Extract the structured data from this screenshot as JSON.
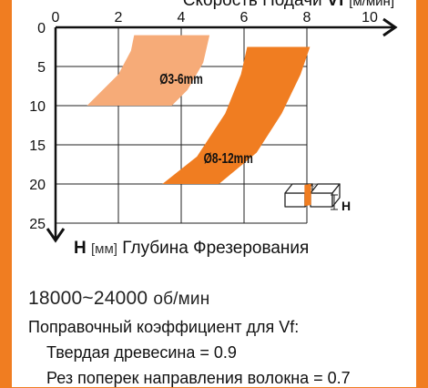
{
  "chart_data": {
    "type": "area",
    "x_axis": {
      "label_prefix": "Скорость Подачи",
      "symbol": "Vf",
      "unit": "[м/мин]",
      "ticks": [
        0,
        2,
        4,
        6,
        8,
        10
      ],
      "range": [
        0,
        10
      ]
    },
    "y_axis": {
      "symbol": "H",
      "unit": "[мм]",
      "label": "Глубина Фрезерования",
      "ticks": [
        0,
        5,
        10,
        15,
        20,
        25
      ],
      "range": [
        0,
        25
      ],
      "inverted": true
    },
    "grid": true,
    "series": [
      {
        "name": "Ø3-6mm",
        "color": "#f6ab78",
        "region": [
          [
            2.5,
            1
          ],
          [
            4.9,
            1
          ],
          [
            4.7,
            4.5
          ],
          [
            4.2,
            8
          ],
          [
            3.7,
            10
          ],
          [
            1,
            10
          ],
          [
            2.0,
            6
          ],
          [
            2.4,
            3
          ]
        ]
      },
      {
        "name": "Ø8-12mm",
        "color": "#f07d21",
        "region": [
          [
            6.1,
            2.5
          ],
          [
            8.1,
            2.5
          ],
          [
            7.8,
            6
          ],
          [
            7.2,
            11
          ],
          [
            6.4,
            16
          ],
          [
            5.2,
            20
          ],
          [
            3.4,
            20
          ],
          [
            4.5,
            16.5
          ],
          [
            5.4,
            11
          ],
          [
            5.9,
            6
          ]
        ]
      }
    ],
    "inset_label": "H"
  },
  "notes": {
    "speed_value": "18000~24000",
    "speed_unit": "об/мин",
    "correction_title": "Поправочный коэффициент для Vf:",
    "correction_lines": [
      "Твердая древесина = 0.9",
      "Рез поперек направления волокна = 0.7"
    ]
  }
}
